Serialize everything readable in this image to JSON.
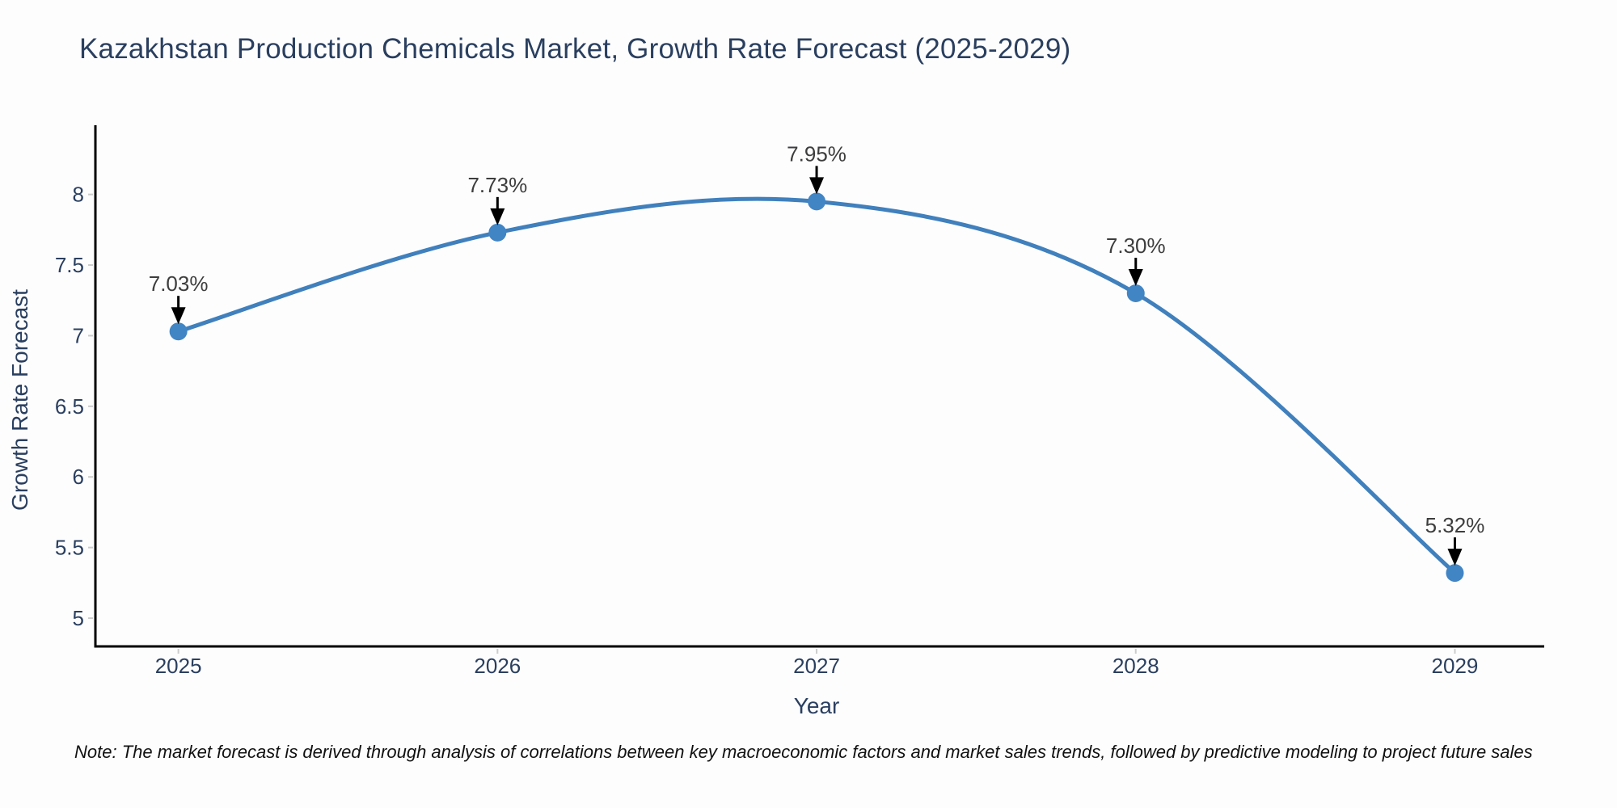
{
  "chart_data": {
    "type": "line",
    "line_shape": "spline",
    "title": "Kazakhstan Production Chemicals Market, Growth Rate Forecast (2025-2029)",
    "xlabel": "Year",
    "ylabel": "Growth Rate Forecast",
    "x": [
      2025,
      2026,
      2027,
      2028,
      2029
    ],
    "y": [
      7.03,
      7.73,
      7.95,
      7.3,
      5.32
    ],
    "point_labels": [
      "7.03%",
      "7.73%",
      "7.95%",
      "7.30%",
      "5.32%"
    ],
    "xticks": [
      "2025",
      "2026",
      "2027",
      "2028",
      "2029"
    ],
    "yticks": [
      "5",
      "5.5",
      "6",
      "6.5",
      "7",
      "7.5",
      "8"
    ],
    "xlim": [
      2024.74,
      2029.28
    ],
    "ylim": [
      4.8,
      8.49
    ],
    "grid": false,
    "legend": false,
    "annotation_arrows": "down",
    "note": "Note: The market forecast is derived through analysis of correlations between key macroeconomic factors and market sales trends, followed by predictive modeling to project future sales",
    "colors": {
      "line": "#4080bc",
      "marker": "#4185c4",
      "axis": "#000000",
      "tick_mark": "#cccccc",
      "title_text": "#2a3f5f",
      "tick_text": "#2a3f5f",
      "annotation_text": "#3d3d3d",
      "arrow": "#000000",
      "background": "#fdfdfe"
    }
  }
}
